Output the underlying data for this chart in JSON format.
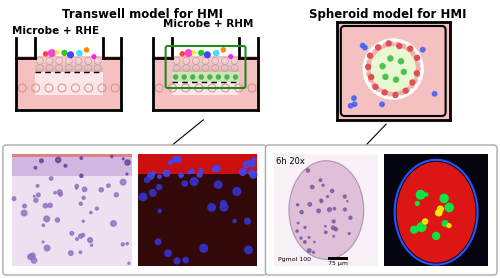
{
  "title_left": "Transwell model for HMI",
  "title_right": "Spheroid model for HMI",
  "label_rhe": "Microbe + RHE",
  "label_rhm": "Microbe + RHM",
  "bg_color": "#ffffff",
  "pink_well": "#f5c0c0",
  "pink_epi": "#f0b0b0",
  "pink_epi2": "#f8d8d8",
  "green_lamina": "#c8e8b8",
  "scale_bar_text": "75 μm",
  "label_6h": "6h 20x",
  "label_pgmol": "Pgmol 100"
}
